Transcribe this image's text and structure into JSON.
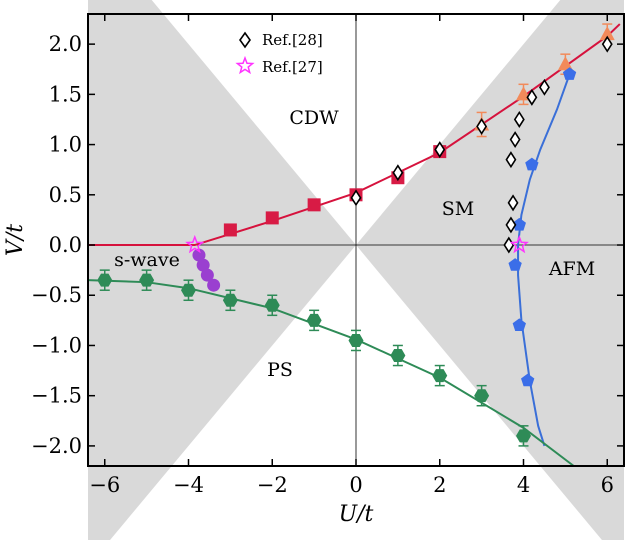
{
  "chart_data": {
    "type": "scatter",
    "title": "",
    "xlabel": "U/t",
    "ylabel": "V/t",
    "xlim": [
      -6.4,
      6.4
    ],
    "ylim": [
      -2.2,
      2.3
    ],
    "xticks": [
      -6,
      -4,
      -2,
      0,
      2,
      4,
      6
    ],
    "yticks": [
      -2.0,
      -1.5,
      -1.0,
      -0.5,
      0.0,
      0.5,
      1.0,
      1.5,
      2.0
    ],
    "xtick_labels": [
      "−6",
      "−4",
      "−2",
      "0",
      "2",
      "4",
      "6"
    ],
    "ytick_labels": [
      "−2.0",
      "−1.5",
      "−1.0",
      "−0.5",
      "0.0",
      "0.5",
      "1.0",
      "1.5",
      "2.0"
    ],
    "grid": false,
    "legend_position": "top-center",
    "colors": {
      "shade": "#d9d9d9",
      "cdw_line": "#d6123d",
      "afm_line": "#3a6fd8",
      "ps_line": "#2e8b57",
      "cdw_marker": "#d81b45",
      "afm_marker": "#3b6ee8",
      "ps_marker": "#2e8b57",
      "swave_marker": "#9a3fd0",
      "triangle_marker": "#f28a5a",
      "ref27_marker": "#ff33ff",
      "ref28_marker": "#000000"
    },
    "region_labels": [
      "CDW",
      "SM",
      "AFM",
      "PS",
      "s-wave"
    ],
    "legend": [
      {
        "label": "Ref.[28]",
        "marker": "diamond"
      },
      {
        "label": "Ref.[27]",
        "marker": "star"
      }
    ],
    "series": [
      {
        "marker": "square",
        "color": "#d81b45",
        "points": [
          [
            -3.0,
            0.15
          ],
          [
            -2.0,
            0.27
          ],
          [
            -1.0,
            0.4
          ],
          [
            0.0,
            0.5
          ],
          [
            1.0,
            0.67
          ],
          [
            2.0,
            0.93
          ]
        ]
      },
      {
        "marker": "triangle",
        "color": "#f28a5a",
        "points": [
          [
            3.0,
            1.2,
            0.12
          ],
          [
            4.0,
            1.5,
            0.1
          ],
          [
            5.0,
            1.8,
            0.1
          ],
          [
            6.0,
            2.1,
            0.1
          ]
        ]
      },
      {
        "marker": "pentagon",
        "color": "#3b6ee8",
        "points": [
          [
            5.1,
            1.7
          ],
          [
            4.2,
            0.8
          ],
          [
            3.9,
            0.2
          ],
          [
            3.8,
            -0.2
          ],
          [
            3.9,
            -0.8
          ],
          [
            4.1,
            -1.35
          ]
        ]
      },
      {
        "marker": "hexagon",
        "color": "#2e8b57",
        "points": [
          [
            -6.0,
            -0.35,
            0.1
          ],
          [
            -5.0,
            -0.35,
            0.1
          ],
          [
            -4.0,
            -0.45,
            0.1
          ],
          [
            -3.0,
            -0.55,
            0.1
          ],
          [
            -2.0,
            -0.6,
            0.1
          ],
          [
            -1.0,
            -0.75,
            0.1
          ],
          [
            0.0,
            -0.95,
            0.1
          ],
          [
            1.0,
            -1.1,
            0.1
          ],
          [
            2.0,
            -1.3,
            0.1
          ],
          [
            3.0,
            -1.5,
            0.1
          ],
          [
            4.0,
            -1.9,
            0.1
          ]
        ]
      },
      {
        "marker": "circle",
        "color": "#9a3fd0",
        "points": [
          [
            -3.75,
            -0.1
          ],
          [
            -3.65,
            -0.2
          ],
          [
            -3.55,
            -0.3
          ],
          [
            -3.4,
            -0.4
          ]
        ]
      },
      {
        "name": "Ref.[28]",
        "marker": "diamond",
        "color": "#000000",
        "points": [
          [
            0.0,
            0.47
          ],
          [
            1.0,
            0.72
          ],
          [
            2.0,
            0.95
          ],
          [
            3.0,
            1.18
          ],
          [
            4.2,
            1.47
          ],
          [
            4.5,
            1.57
          ],
          [
            3.9,
            1.25
          ],
          [
            3.8,
            1.05
          ],
          [
            3.7,
            0.85
          ],
          [
            3.75,
            0.42
          ],
          [
            3.7,
            0.2
          ],
          [
            3.65,
            0.0
          ],
          [
            6.0,
            2.0
          ]
        ]
      },
      {
        "name": "Ref.[27]",
        "marker": "star",
        "color": "#ff33ff",
        "points": [
          [
            -3.85,
            0.0
          ],
          [
            3.9,
            0.0
          ]
        ]
      }
    ],
    "fit_lines": [
      {
        "color": "#d6123d",
        "points": [
          [
            -6.4,
            0.0
          ],
          [
            -3.85,
            0.0
          ],
          [
            -2.0,
            0.24
          ],
          [
            0.0,
            0.52
          ],
          [
            2.0,
            0.92
          ],
          [
            4.0,
            1.48
          ],
          [
            6.0,
            2.08
          ],
          [
            6.3,
            2.2
          ]
        ]
      },
      {
        "color": "#3a6fd8",
        "points": [
          [
            5.1,
            1.7
          ],
          [
            4.8,
            1.35
          ],
          [
            4.4,
            0.95
          ],
          [
            4.15,
            0.65
          ],
          [
            3.95,
            0.3
          ],
          [
            3.87,
            0.0
          ],
          [
            3.87,
            -0.3
          ],
          [
            3.95,
            -0.75
          ],
          [
            4.15,
            -1.35
          ],
          [
            4.35,
            -1.8
          ],
          [
            4.5,
            -2.0
          ]
        ]
      },
      {
        "color": "#2e8b57",
        "points": [
          [
            -6.4,
            -0.35
          ],
          [
            -5.0,
            -0.37
          ],
          [
            -4.0,
            -0.43
          ],
          [
            -2.0,
            -0.63
          ],
          [
            0.0,
            -0.94
          ],
          [
            2.0,
            -1.32
          ],
          [
            4.0,
            -1.82
          ],
          [
            5.2,
            -2.2
          ]
        ]
      }
    ]
  }
}
